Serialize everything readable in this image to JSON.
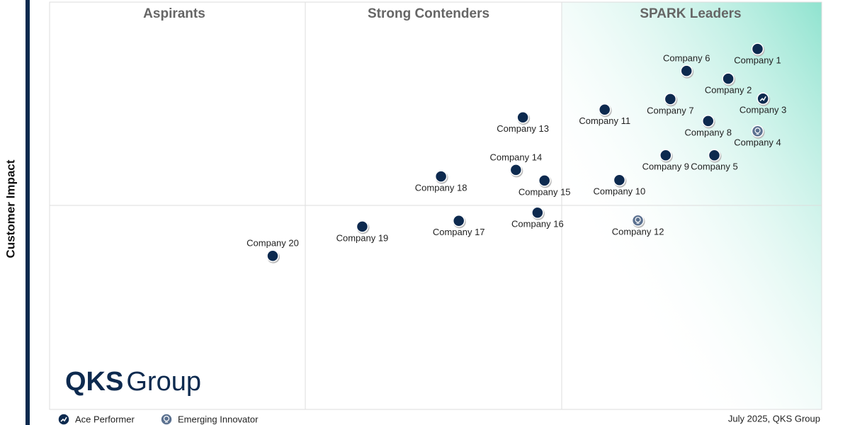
{
  "chart_data": {
    "type": "scatter",
    "quadrant_titles": [
      "Aspirants",
      "Strong Contenders",
      "SPARK Leaders"
    ],
    "y_label": "Customer Impact",
    "logo": {
      "bold": "QKS",
      "light": "Group"
    },
    "footer": "July  2025, QKS Group",
    "categories": [
      "Company 1",
      "Company 2",
      "Company 3",
      "Company 4",
      "Company 5",
      "Company 6",
      "Company 7",
      "Company 8",
      "Company 9",
      "Company 10",
      "Company 11",
      "Company 12",
      "Company 13",
      "Company 14",
      "Company 15",
      "Company 16",
      "Company 17",
      "Company 18",
      "Company 19",
      "Company 20"
    ],
    "x": [
      91.7,
      87.9,
      92.4,
      91.7,
      86.1,
      82.5,
      80.4,
      85.3,
      79.8,
      73.8,
      71.9,
      76.2,
      61.3,
      60.4,
      64.1,
      63.2,
      53.0,
      50.7,
      40.5,
      28.9
    ],
    "values": [
      88.5,
      81.2,
      76.3,
      68.3,
      62.4,
      83.1,
      76.2,
      70.8,
      62.4,
      56.3,
      73.6,
      46.4,
      71.7,
      58.8,
      56.2,
      48.3,
      46.3,
      57.2,
      44.9,
      37.7
    ],
    "xlim": [
      0,
      100
    ],
    "ylim": [
      0,
      100
    ],
    "color": "#0d2a4f",
    "legend": [
      {
        "name": "Ace Performer",
        "color": "#0d2a4f",
        "points": [
          2
        ]
      },
      {
        "name": "Emerging Innovator",
        "color": "#5b7190",
        "points": [
          3,
          11
        ]
      }
    ]
  }
}
